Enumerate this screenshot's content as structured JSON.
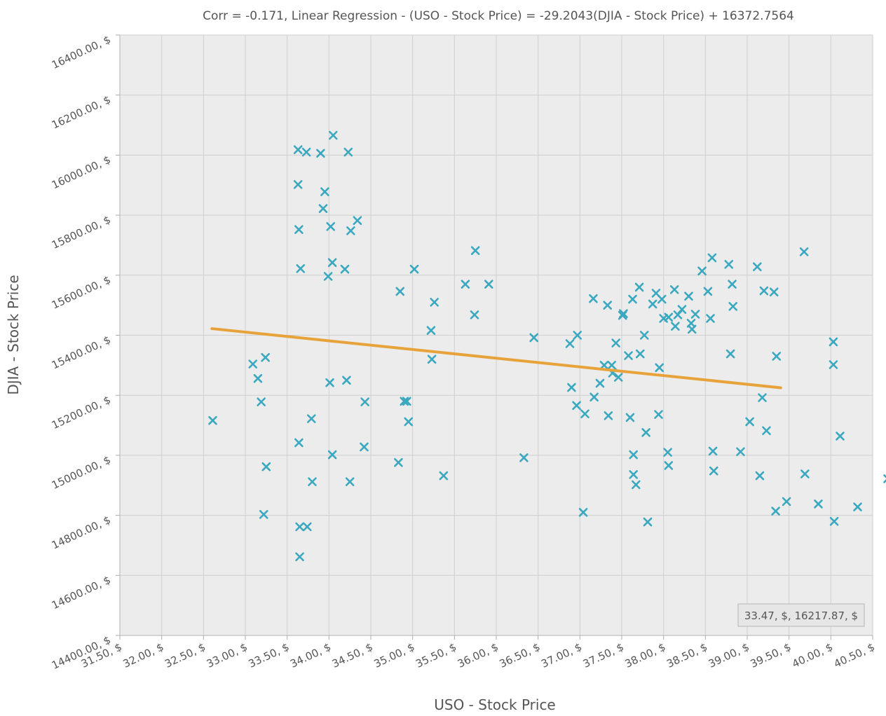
{
  "chart_data": {
    "type": "scatter",
    "title": "Corr = -0.171, Linear Regression - (USO - Stock Price) = -29.2043(DJIA - Stock Price) + 16372.7564",
    "xlabel": "USO - Stock Price",
    "ylabel": "DJIA - Stock Price",
    "xlim": [
      31.5,
      40.5
    ],
    "ylim": [
      14400,
      16400
    ],
    "x_ticks": [
      "31.50, $",
      "32.00, $",
      "32.50, $",
      "33.00, $",
      "33.50, $",
      "34.00, $",
      "34.50, $",
      "35.00, $",
      "35.50, $",
      "36.00, $",
      "36.50, $",
      "37.00, $",
      "37.50, $",
      "38.00, $",
      "38.50, $",
      "39.00, $",
      "39.50, $",
      "40.00, $",
      "40.50, $"
    ],
    "y_ticks": [
      "14400.00, $",
      "14600.00, $",
      "14800.00, $",
      "15000.00, $",
      "15200.00, $",
      "15400.00, $",
      "15600.00, $",
      "15800.00, $",
      "16000.00, $",
      "16200.00, $",
      "16400.00, $"
    ],
    "grid": true,
    "colors": {
      "points": "#3aa8bf",
      "regression": "#e8a23a",
      "plot_bg": "#ececec"
    },
    "regression_line": {
      "x": [
        32.6,
        39.4
      ],
      "y": [
        15422,
        15225
      ]
    },
    "readout": "33.47, $, 16217.87, $",
    "series": [
      {
        "points": [
          [
            32.61,
            15116
          ],
          [
            33.09,
            15304
          ],
          [
            33.15,
            15256
          ],
          [
            33.19,
            15178
          ],
          [
            33.22,
            14803
          ],
          [
            33.24,
            15326
          ],
          [
            33.25,
            14962
          ],
          [
            33.63,
            16018
          ],
          [
            33.63,
            15902
          ],
          [
            33.64,
            15752
          ],
          [
            33.64,
            15042
          ],
          [
            33.65,
            14762
          ],
          [
            33.65,
            14662
          ],
          [
            33.66,
            15622
          ],
          [
            33.73,
            16010
          ],
          [
            33.74,
            14762
          ],
          [
            33.79,
            15122
          ],
          [
            33.8,
            14912
          ],
          [
            33.9,
            16006
          ],
          [
            33.93,
            15822
          ],
          [
            33.95,
            15878
          ],
          [
            33.99,
            15596
          ],
          [
            34.01,
            15242
          ],
          [
            34.02,
            15762
          ],
          [
            34.04,
            15002
          ],
          [
            34.04,
            15642
          ],
          [
            34.05,
            16066
          ],
          [
            34.19,
            15620
          ],
          [
            34.21,
            15250
          ],
          [
            34.23,
            16010
          ],
          [
            34.25,
            14912
          ],
          [
            34.26,
            15748
          ],
          [
            34.34,
            15782
          ],
          [
            34.42,
            15028
          ],
          [
            34.43,
            15178
          ],
          [
            34.83,
            14976
          ],
          [
            34.85,
            15546
          ],
          [
            34.9,
            15180
          ],
          [
            34.93,
            15180
          ],
          [
            34.95,
            15112
          ],
          [
            35.02,
            15620
          ],
          [
            35.22,
            15416
          ],
          [
            35.23,
            15320
          ],
          [
            35.26,
            15510
          ],
          [
            35.37,
            14932
          ],
          [
            35.63,
            15570
          ],
          [
            35.74,
            15468
          ],
          [
            35.75,
            15682
          ],
          [
            35.91,
            15570
          ],
          [
            36.33,
            14992
          ],
          [
            36.45,
            15392
          ],
          [
            36.88,
            15372
          ],
          [
            36.9,
            15226
          ],
          [
            36.96,
            15166
          ],
          [
            36.97,
            15400
          ],
          [
            37.04,
            14810
          ],
          [
            37.06,
            15138
          ],
          [
            37.16,
            15522
          ],
          [
            37.17,
            15194
          ],
          [
            37.24,
            15240
          ],
          [
            37.29,
            15300
          ],
          [
            37.33,
            15500
          ],
          [
            37.34,
            15132
          ],
          [
            37.38,
            15300
          ],
          [
            37.39,
            15274
          ],
          [
            37.43,
            15374
          ],
          [
            37.46,
            15260
          ],
          [
            37.51,
            15466
          ],
          [
            37.52,
            15472
          ],
          [
            37.58,
            15332
          ],
          [
            37.6,
            15126
          ],
          [
            37.63,
            15520
          ],
          [
            37.64,
            15002
          ],
          [
            37.64,
            14936
          ],
          [
            37.67,
            14902
          ],
          [
            37.71,
            15560
          ],
          [
            37.72,
            15338
          ],
          [
            37.77,
            15400
          ],
          [
            37.79,
            15076
          ],
          [
            37.81,
            14778
          ],
          [
            37.87,
            15504
          ],
          [
            37.91,
            15540
          ],
          [
            37.94,
            15136
          ],
          [
            37.95,
            15292
          ],
          [
            37.98,
            15520
          ],
          [
            38.0,
            15456
          ],
          [
            38.05,
            15010
          ],
          [
            38.06,
            14966
          ],
          [
            38.06,
            15460
          ],
          [
            38.13,
            15552
          ],
          [
            38.14,
            15430
          ],
          [
            38.17,
            15468
          ],
          [
            38.22,
            15486
          ],
          [
            38.3,
            15530
          ],
          [
            38.33,
            15440
          ],
          [
            38.34,
            15420
          ],
          [
            38.38,
            15470
          ],
          [
            38.46,
            15614
          ],
          [
            38.53,
            15546
          ],
          [
            38.56,
            15456
          ],
          [
            38.58,
            15658
          ],
          [
            38.59,
            15014
          ],
          [
            38.6,
            14948
          ],
          [
            38.78,
            15636
          ],
          [
            38.8,
            15338
          ],
          [
            38.82,
            15570
          ],
          [
            38.83,
            15496
          ],
          [
            38.92,
            15012
          ],
          [
            39.03,
            15112
          ],
          [
            39.12,
            15628
          ],
          [
            39.15,
            14932
          ],
          [
            39.18,
            15192
          ],
          [
            39.2,
            15548
          ],
          [
            39.23,
            15082
          ],
          [
            39.32,
            15544
          ],
          [
            39.34,
            14814
          ],
          [
            39.35,
            15330
          ],
          [
            39.47,
            14846
          ],
          [
            39.68,
            15678
          ],
          [
            39.69,
            14938
          ],
          [
            39.85,
            14838
          ],
          [
            40.03,
            15378
          ],
          [
            40.03,
            15302
          ],
          [
            40.04,
            14780
          ],
          [
            40.11,
            15064
          ],
          [
            40.32,
            14828
          ],
          [
            40.68,
            14922
          ]
        ]
      }
    ]
  }
}
